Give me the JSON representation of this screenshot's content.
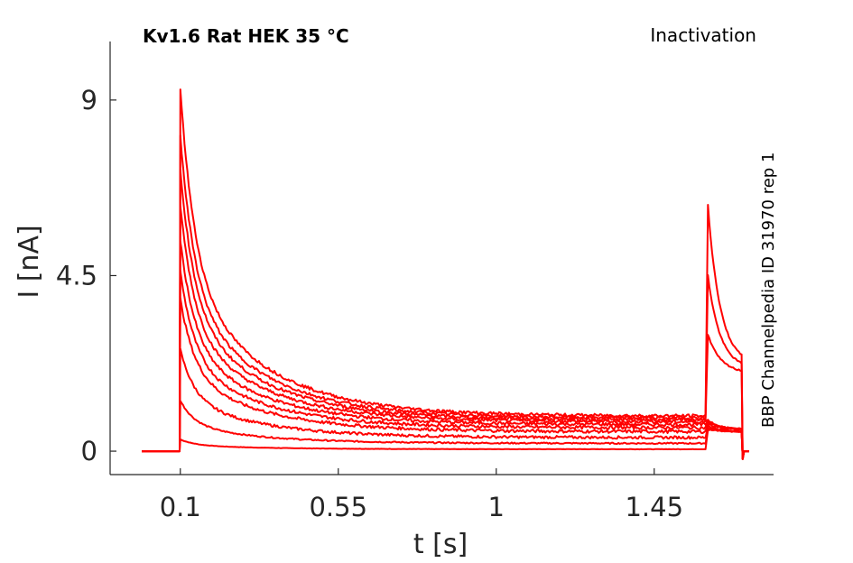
{
  "chart_data": {
    "type": "line",
    "title": "Kv1.6  Rat  HEK  35 °C",
    "protocol": "Inactivation",
    "source": "BBP Channelpedia ID 31970 rep 1",
    "xlabel": "t [s]",
    "ylabel": "I [nA]",
    "xlim": [
      -0.1,
      1.79
    ],
    "ylim": [
      -0.6,
      10.5
    ],
    "xticks": [
      0.1,
      0.55,
      1,
      1.45
    ],
    "xtick_labels": [
      "0.1",
      "0.55",
      "1",
      "1.45"
    ],
    "yticks": [
      0,
      4.5,
      9
    ],
    "ytick_labels": [
      "0",
      "4.5",
      "9"
    ],
    "grid": false,
    "trace_color": "#ff0000",
    "series": [
      {
        "peak": 0.3,
        "late": 0.05,
        "tail_peak": 0.55,
        "tail_end": 0.5
      },
      {
        "peak": 1.3,
        "late": 0.2,
        "tail_peak": 0.6,
        "tail_end": 0.5
      },
      {
        "peak": 2.6,
        "late": 0.35,
        "tail_peak": 0.65,
        "tail_end": 0.5
      },
      {
        "peak": 3.9,
        "late": 0.5,
        "tail_peak": 0.7,
        "tail_end": 0.55
      },
      {
        "peak": 4.6,
        "late": 0.6,
        "tail_peak": 0.75,
        "tail_end": 0.55
      },
      {
        "peak": 5.4,
        "late": 0.68,
        "tail_peak": 0.8,
        "tail_end": 0.55
      },
      {
        "peak": 6.3,
        "late": 0.75,
        "tail_peak": 0.8,
        "tail_end": 0.55
      },
      {
        "peak": 7.2,
        "late": 0.8,
        "tail_peak": 3.0,
        "tail_end": 2.0
      },
      {
        "peak": 8.1,
        "late": 0.85,
        "tail_peak": 4.5,
        "tail_end": 2.1
      },
      {
        "peak": 9.3,
        "late": 0.9,
        "tail_peak": 6.3,
        "tail_end": 2.2
      }
    ],
    "time": {
      "t_on": 0.1,
      "t_step2": 1.6,
      "t_off": 1.7,
      "t_end": 1.72,
      "t_start": -0.01
    }
  }
}
